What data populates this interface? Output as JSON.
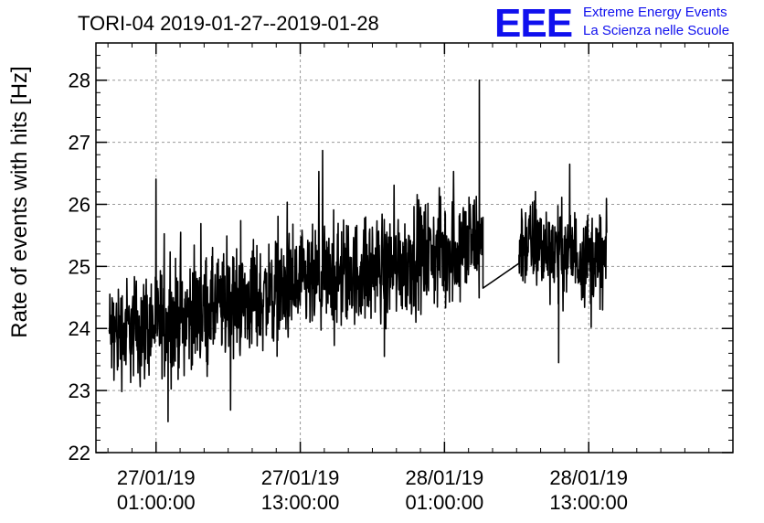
{
  "chart_data": {
    "type": "line",
    "title": "TORI-04 2019-01-27--2019-01-28",
    "xlabel": "",
    "ylabel": "Rate of events with hits [Hz]",
    "ylim": [
      22,
      28.6
    ],
    "yticks": [
      22,
      23,
      24,
      25,
      26,
      27,
      28
    ],
    "x_unit": "hours since 27/01/19 00:00:00",
    "xlim": [
      -4,
      49
    ],
    "xticks": [
      {
        "x": 1,
        "label": [
          "27/01/19",
          "01:00:00"
        ]
      },
      {
        "x": 13,
        "label": [
          "27/01/19",
          "13:00:00"
        ]
      },
      {
        "x": 25,
        "label": [
          "28/01/19",
          "01:00:00"
        ]
      },
      {
        "x": 37,
        "label": [
          "28/01/19",
          "13:00:00"
        ]
      }
    ],
    "grid": true,
    "series": [
      {
        "name": "",
        "segments": [
          {
            "x_start": -2.9,
            "x_end": 28.2,
            "mean_start": 23.9,
            "mean_end": 25.4,
            "noise_amplitude": 0.7
          },
          {
            "x_start": 31.2,
            "x_end": 38.5,
            "mean_start": 25.4,
            "mean_end": 25.1,
            "noise_amplitude": 0.6
          }
        ],
        "gap_connector": {
          "x": [
            28.2,
            31.2
          ],
          "y": [
            24.65,
            25.05
          ]
        },
        "spikes": [
          {
            "x": 27.9,
            "y": 28.0
          },
          {
            "x": 2.0,
            "y": 22.5
          },
          {
            "x": 34.5,
            "y": 23.45
          },
          {
            "x": 20.0,
            "y": 23.55
          }
        ]
      }
    ]
  },
  "logo": {
    "mark": "EEE",
    "line1": "Extreme Energy Events",
    "line2": "La Scienza nelle Scuole"
  },
  "colors": {
    "line": "#000000",
    "grid": "#999999",
    "logo": "#1010ee"
  }
}
